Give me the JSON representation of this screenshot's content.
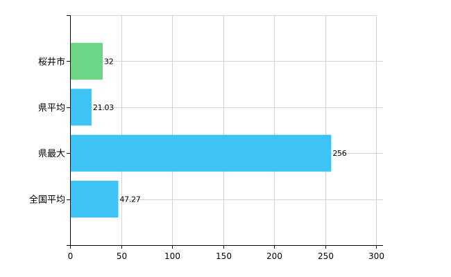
{
  "chart_data": {
    "type": "bar",
    "orientation": "horizontal",
    "title": "",
    "xlabel": "",
    "ylabel": "",
    "categories": [
      "桜井市",
      "県平均",
      "県最大",
      "全国平均"
    ],
    "values": [
      32,
      21.03,
      256,
      47.27
    ],
    "value_labels": [
      "32",
      "21.03",
      "256",
      "47.27"
    ],
    "bar_colors": [
      "#6dd685",
      "#3dc3f4",
      "#3dc3f4",
      "#3dc3f4"
    ],
    "xlim": [
      0,
      300
    ],
    "x_ticks": [
      0,
      50,
      100,
      150,
      200,
      250,
      300
    ],
    "x_tick_labels": [
      "0",
      "50",
      "100",
      "150",
      "200",
      "250",
      "300"
    ],
    "grid": true,
    "legend": "none"
  }
}
